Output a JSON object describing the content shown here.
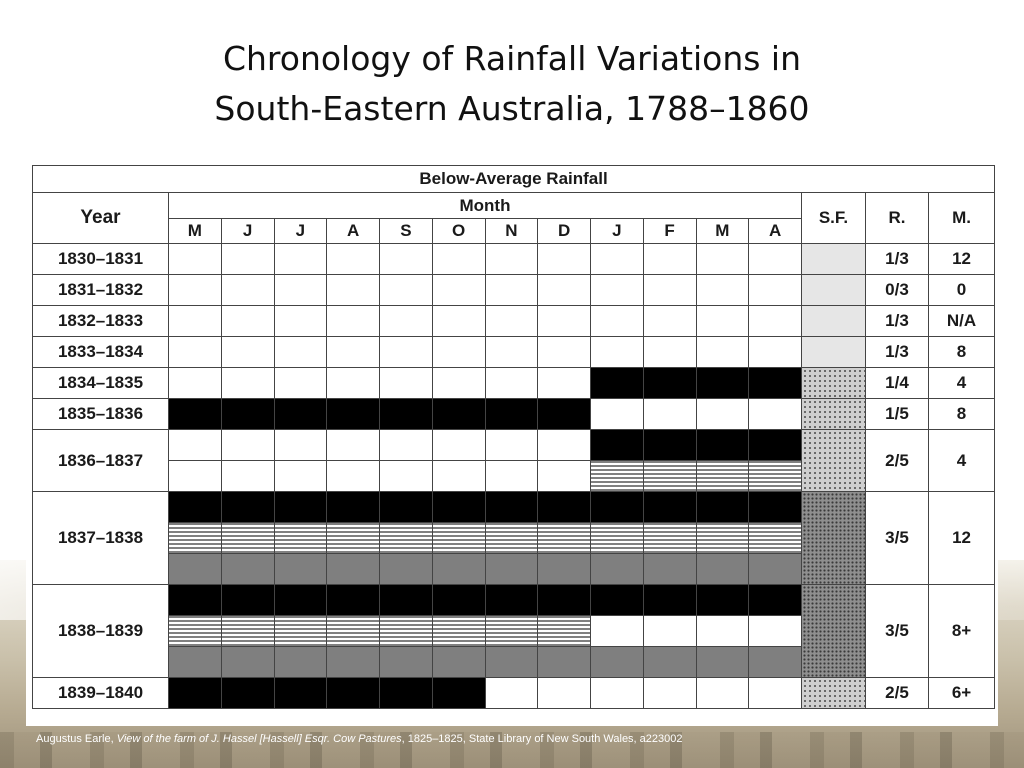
{
  "title": {
    "line1": "Chronology of Rainfall Variations in",
    "line2": "South-Eastern Australia, 1788–1860"
  },
  "table": {
    "header_main": "Below-Average Rainfall",
    "header_year": "Year",
    "header_month": "Month",
    "months": [
      "M",
      "J",
      "J",
      "A",
      "S",
      "O",
      "N",
      "D",
      "J",
      "F",
      "M",
      "A"
    ],
    "header_sf": "S.F.",
    "header_r": "R.",
    "header_m": "M.",
    "rows": [
      {
        "year": "1830–1831",
        "r": "1/3",
        "m": "12",
        "sf": "light",
        "subrows": [
          "wwwwwwwwwwww"
        ]
      },
      {
        "year": "1831–1832",
        "r": "0/3",
        "m": "0",
        "sf": "light",
        "subrows": [
          "wwwwwwwwwwww"
        ]
      },
      {
        "year": "1832–1833",
        "r": "1/3",
        "m": "N/A",
        "sf": "light",
        "subrows": [
          "wwwwwwwwwwww"
        ]
      },
      {
        "year": "1833–1834",
        "r": "1/3",
        "m": "8",
        "sf": "light",
        "subrows": [
          "wwwwwwwwwwww"
        ]
      },
      {
        "year": "1834–1835",
        "r": "1/4",
        "m": "4",
        "sf": "dotted",
        "subrows": [
          "wwwwwwwwbbbb"
        ]
      },
      {
        "year": "1835–1836",
        "r": "1/5",
        "m": "8",
        "sf": "dotted",
        "subrows": [
          "bbbbbbbbwwww"
        ]
      },
      {
        "year": "1836–1837",
        "r": "2/5",
        "m": "4",
        "sf": "dotted",
        "subrows": [
          "wwwwwwwwbbbb",
          "wwwwwwwwhhhh"
        ]
      },
      {
        "year": "1837–1838",
        "r": "3/5",
        "m": "12",
        "sf": "dark",
        "subrows": [
          "bbbbbbbbbbbb",
          "hhhhhhhhhhhh",
          "gggggggggggg"
        ]
      },
      {
        "year": "1838–1839",
        "r": "3/5",
        "m": "8+",
        "sf": "dark",
        "subrows": [
          "bbbbbbbbbbbb",
          "hhhhhhhhwwww",
          "gggggggggggg"
        ]
      },
      {
        "year": "1839–1840",
        "r": "2/5",
        "m": "6+",
        "sf": "dotted",
        "subrows": [
          "bbbbbbwwwwww"
        ]
      }
    ]
  },
  "caption": {
    "author": "Augustus Earle, ",
    "work": "View of the farm of J. Hassel [Hassell] Esqr. Cow Pastures",
    "rest": ", 1825–1825, State Library of New South Wales, a223002"
  },
  "colors": {
    "black": "#000000",
    "gray": "#7f7f7f",
    "sf_light": "#e6e6e6",
    "sf_dotted": "#cfcfcf",
    "sf_dark": "#8f8f8f"
  }
}
